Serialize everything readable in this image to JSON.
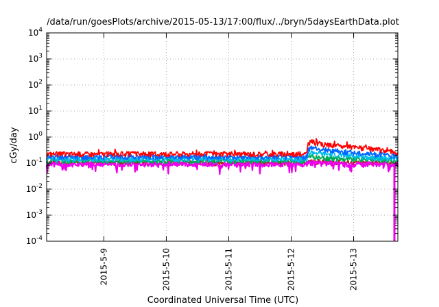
{
  "chart_data": {
    "type": "line",
    "title": "/data/run/goesPlots/archive/2015-05-13/17:00/flux/../bryn/5daysEarthData.plot",
    "xlabel": "Coordinated Universal Time (UTC)",
    "ylabel": "cGy/day",
    "yscale": "log",
    "ylim": [
      0.0001,
      10000
    ],
    "y_ticks": [
      {
        "base": "10",
        "exp": "-4"
      },
      {
        "base": "10",
        "exp": "-3"
      },
      {
        "base": "10",
        "exp": "-2"
      },
      {
        "base": "10",
        "exp": "-1"
      },
      {
        "base": "10",
        "exp": "0"
      },
      {
        "base": "10",
        "exp": "1"
      },
      {
        "base": "10",
        "exp": "2"
      },
      {
        "base": "10",
        "exp": "3"
      },
      {
        "base": "10",
        "exp": "4"
      }
    ],
    "xlim": [
      "2015-05-08 02:00",
      "2015-05-13 17:00"
    ],
    "x_ticks": [
      "2015-5-9",
      "2015-5-10",
      "2015-5-11",
      "2015-5-12",
      "2015-5-13"
    ],
    "x_tick_dates": [
      "2015-05-09",
      "2015-05-10",
      "2015-05-11",
      "2015-05-12",
      "2015-05-13"
    ],
    "grid": true,
    "legend": "none",
    "x_samples": [
      "2015-05-08 02:00",
      "2015-05-12 06:00",
      "2015-05-12 06:30",
      "2015-05-12 08:00",
      "2015-05-12 12:00",
      "2015-05-13 00:00",
      "2015-05-13 12:00",
      "2015-05-13 17:00"
    ],
    "series": [
      {
        "color": "#ff0000",
        "values": [
          0.22,
          0.22,
          0.55,
          0.65,
          0.5,
          0.4,
          0.3,
          0.25
        ]
      },
      {
        "color": "#0066ff",
        "values": [
          0.17,
          0.17,
          0.3,
          0.38,
          0.32,
          0.25,
          0.2,
          0.18
        ]
      },
      {
        "color": "#00bbee",
        "values": [
          0.14,
          0.14,
          0.22,
          0.25,
          0.22,
          0.18,
          0.15,
          0.14
        ]
      },
      {
        "color": "#00aa55",
        "values": [
          0.12,
          0.12,
          0.16,
          0.17,
          0.15,
          0.14,
          0.13,
          0.12
        ]
      },
      {
        "color": "#ee00ee",
        "values": [
          0.09,
          0.09,
          0.1,
          0.1,
          0.1,
          0.09,
          0.09,
          0.09
        ]
      },
      {
        "color": "#aa2200",
        "values": [
          0.1,
          0.1,
          0.11,
          0.11,
          0.11,
          0.1,
          0.1,
          0.1
        ]
      }
    ]
  }
}
